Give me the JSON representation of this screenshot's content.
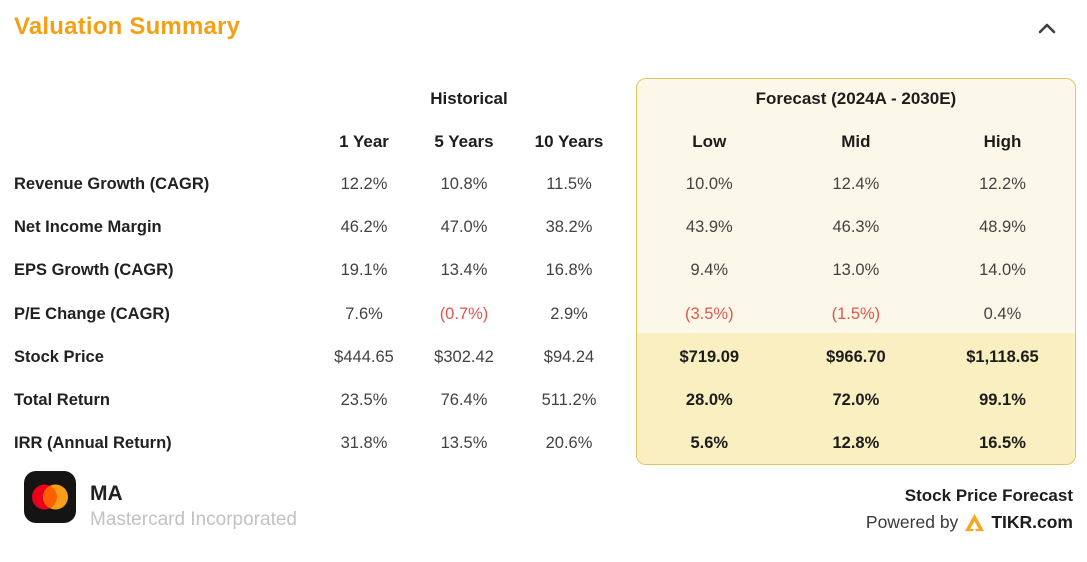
{
  "header": {
    "title": "Valuation Summary",
    "collapse_icon": "chevron-up"
  },
  "table": {
    "historical_group_label": "Historical",
    "forecast_group_label": "Forecast (2024A - 2030E)",
    "historical_columns": [
      "1 Year",
      "5 Years",
      "10 Years"
    ],
    "forecast_columns": [
      "Low",
      "Mid",
      "High"
    ],
    "rows": [
      {
        "label": "Revenue Growth (CAGR)",
        "historical": [
          "12.2%",
          "10.8%",
          "11.5%"
        ],
        "forecast": [
          "10.0%",
          "12.4%",
          "12.2%"
        ],
        "highlight": false
      },
      {
        "label": "Net Income Margin",
        "historical": [
          "46.2%",
          "47.0%",
          "38.2%"
        ],
        "forecast": [
          "43.9%",
          "46.3%",
          "48.9%"
        ],
        "highlight": false
      },
      {
        "label": "EPS Growth (CAGR)",
        "historical": [
          "19.1%",
          "13.4%",
          "16.8%"
        ],
        "forecast": [
          "9.4%",
          "13.0%",
          "14.0%"
        ],
        "highlight": false
      },
      {
        "label": "P/E Change (CAGR)",
        "historical": [
          "7.6%",
          "(0.7%)",
          "2.9%"
        ],
        "forecast": [
          "(3.5%)",
          "(1.5%)",
          "0.4%"
        ],
        "highlight": false
      },
      {
        "label": "Stock Price",
        "historical": [
          "$444.65",
          "$302.42",
          "$94.24"
        ],
        "forecast": [
          "$719.09",
          "$966.70",
          "$1,118.65"
        ],
        "highlight": true
      },
      {
        "label": "Total Return",
        "historical": [
          "23.5%",
          "76.4%",
          "511.2%"
        ],
        "forecast": [
          "28.0%",
          "72.0%",
          "99.1%"
        ],
        "highlight": true
      },
      {
        "label": "IRR (Annual Return)",
        "historical": [
          "31.8%",
          "13.5%",
          "20.6%"
        ],
        "forecast": [
          "5.6%",
          "12.8%",
          "16.5%"
        ],
        "highlight": true
      }
    ]
  },
  "footer": {
    "ticker": "MA",
    "company": "Mastercard Incorporated",
    "right_title": "Stock Price Forecast",
    "powered_by_label": "Powered by",
    "brand": "TIKR.com"
  },
  "icons": {
    "collapse": "chevron-up-icon",
    "company_logo": "mastercard-logo",
    "brand_logo": "tikr-triangle-icon"
  },
  "colors": {
    "accent_orange": "#F5A014",
    "negative_red": "#E8544D",
    "forecast_bg": "#FCF8E9",
    "forecast_highlight_bg": "#F9EFC0",
    "forecast_border": "#E3C65F",
    "label_text": "#212121",
    "value_text": "#424242",
    "muted_text": "#C2C2C2",
    "mastercard_red": "#EB001B",
    "mastercard_orange": "#F79E1B",
    "mastercard_overlap": "#FF5F00"
  }
}
